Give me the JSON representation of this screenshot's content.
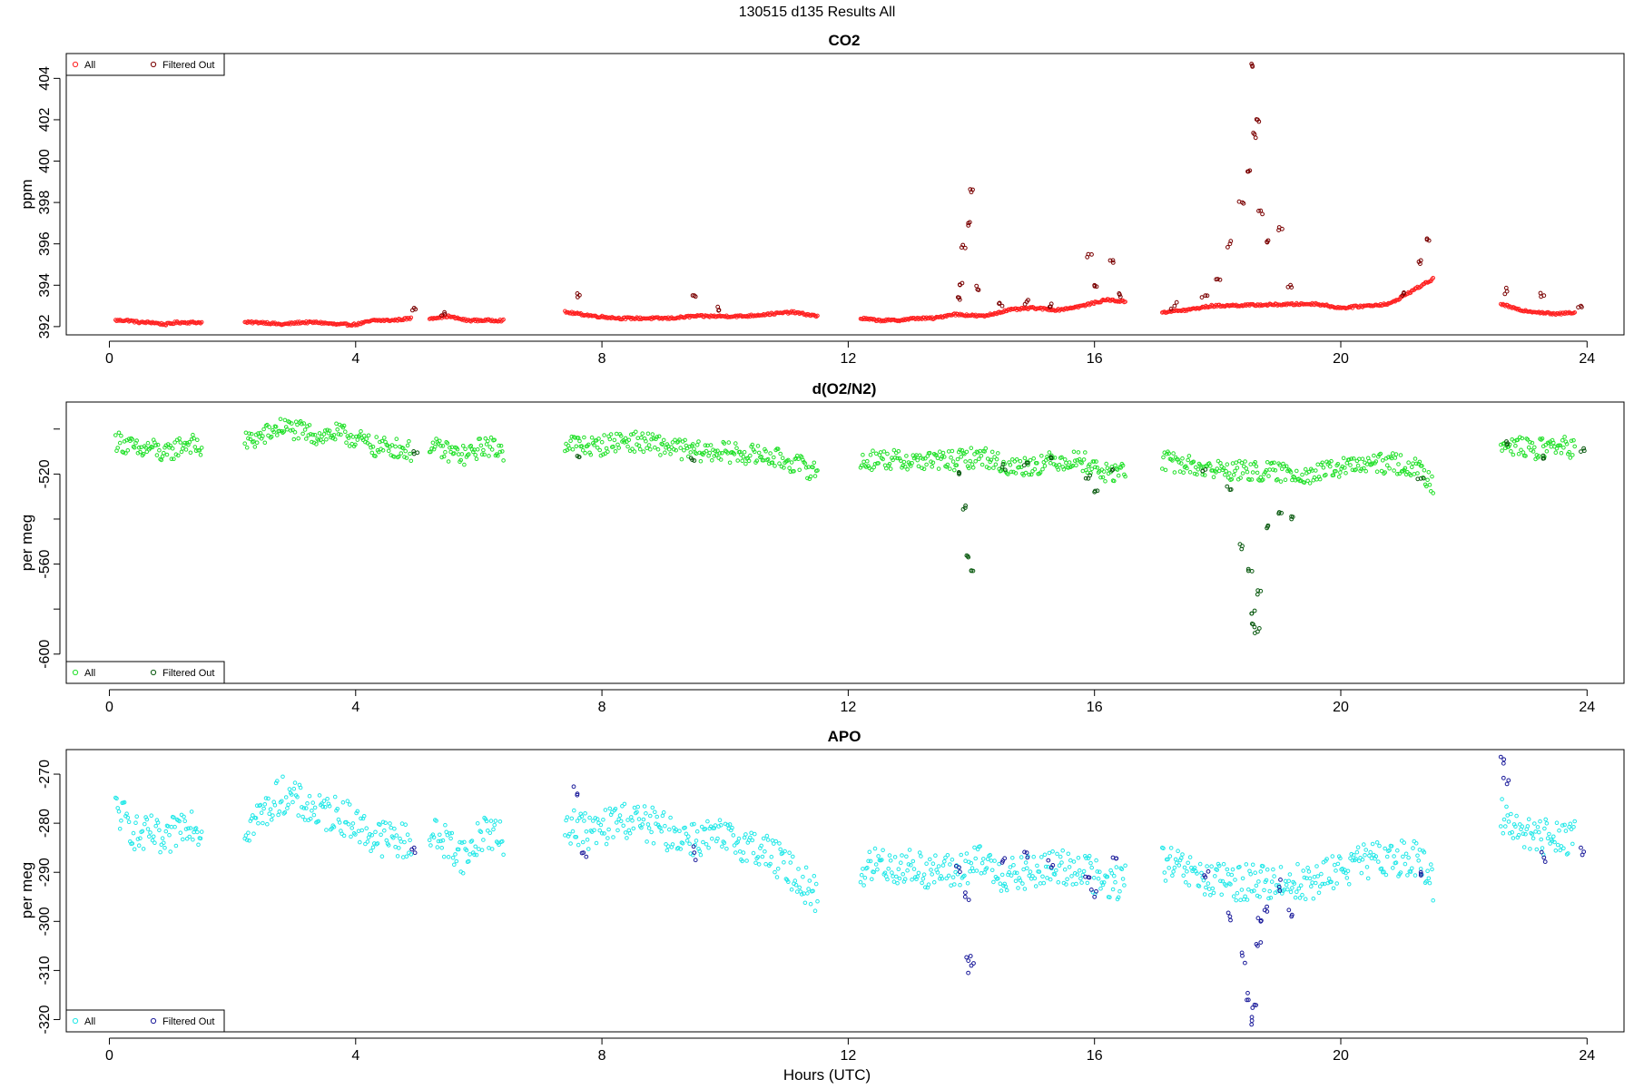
{
  "figure": {
    "title": "130515   d135   Results All",
    "xlabel": "Hours (UTC)"
  },
  "colors": {
    "co2_all": "#ff2020",
    "co2_filtered": "#7a0000",
    "o2_all": "#22e02a",
    "o2_filtered": "#0a5a10",
    "apo_all": "#20e8e8",
    "apo_filtered": "#1a1a9a"
  },
  "chart_data": [
    {
      "type": "scatter",
      "title": "CO2",
      "xlabel": "",
      "ylabel": "ppm",
      "xlim": [
        -0.7,
        24.6
      ],
      "ylim": [
        391.6,
        405.2
      ],
      "xticks": [
        "0",
        "4",
        "8",
        "12",
        "16",
        "20",
        "24"
      ],
      "yticks": [
        "392",
        "394",
        "396",
        "398",
        "400",
        "402",
        "404"
      ],
      "grid": false,
      "legend_position": "top-left",
      "series": [
        {
          "name": "All",
          "color": "#ff2020",
          "y": [],
          "segments": [
            {
              "x": [
                0.1,
                0.3,
                0.5,
                0.7,
                0.9,
                1.1,
                1.3,
                1.5
              ],
              "y": [
                392.3,
                392.3,
                392.2,
                392.2,
                392.1,
                392.2,
                392.2,
                392.2
              ]
            },
            {
              "x": [
                2.2,
                2.5,
                2.8,
                3.1,
                3.4,
                3.7,
                4.0,
                4.3,
                4.6,
                4.9
              ],
              "y": [
                392.2,
                392.2,
                392.1,
                392.2,
                392.2,
                392.1,
                392.1,
                392.3,
                392.3,
                392.4
              ]
            },
            {
              "x": [
                5.2,
                5.5,
                5.8,
                6.1,
                6.4
              ],
              "y": [
                392.4,
                392.5,
                392.3,
                392.3,
                392.3
              ]
            },
            {
              "x": [
                7.4,
                7.9,
                8.3,
                8.7,
                9.1,
                9.5,
                9.9,
                10.3,
                10.7,
                11.1,
                11.5
              ],
              "y": [
                392.7,
                392.5,
                392.4,
                392.4,
                392.4,
                392.5,
                392.5,
                392.5,
                392.6,
                392.7,
                392.5
              ]
            },
            {
              "x": [
                12.2,
                12.5,
                12.8,
                13.1,
                13.4,
                13.7,
                14.2,
                14.6,
                15.0,
                15.4,
                15.8,
                16.2,
                16.5
              ],
              "y": [
                392.4,
                392.3,
                392.3,
                392.4,
                392.4,
                392.6,
                392.5,
                392.8,
                392.9,
                392.8,
                393.0,
                393.3,
                393.2
              ]
            },
            {
              "x": [
                17.1,
                17.5,
                17.9,
                19.6,
                20.0,
                20.4,
                20.8,
                21.2,
                21.5
              ],
              "y": [
                392.7,
                392.8,
                393.0,
                393.1,
                392.9,
                393.0,
                393.1,
                393.8,
                394.3
              ]
            },
            {
              "x": [
                22.6,
                22.9,
                23.2,
                23.5,
                23.8
              ],
              "y": [
                393.1,
                392.8,
                392.7,
                392.6,
                392.7
              ]
            }
          ]
        },
        {
          "name": "Filtered Out",
          "color": "#7a0000",
          "y": [],
          "points": {
            "x": [
              4.95,
              5.45,
              7.6,
              9.5,
              9.9,
              13.8,
              13.85,
              13.9,
              13.95,
              14.0,
              14.1,
              14.5,
              14.9,
              15.3,
              15.9,
              16.0,
              16.3,
              16.4,
              17.3,
              17.8,
              18.0,
              18.2,
              18.4,
              18.5,
              18.55,
              18.6,
              18.65,
              18.7,
              18.8,
              19.0,
              19.2,
              21.0,
              21.3,
              21.4,
              22.7,
              23.3,
              23.9
            ],
            "y": [
              392.9,
              392.6,
              393.6,
              393.5,
              392.8,
              393.4,
              394.1,
              395.8,
              397.0,
              398.5,
              393.8,
              393.0,
              393.2,
              393.1,
              395.5,
              394.0,
              395.2,
              393.6,
              393.0,
              393.5,
              394.3,
              396.0,
              398.0,
              399.5,
              404.7,
              401.3,
              402.0,
              397.6,
              396.1,
              396.8,
              393.9,
              393.5,
              395.2,
              396.2,
              393.7,
              393.5,
              393.0
            ]
          }
        }
      ]
    },
    {
      "type": "scatter",
      "title": "d(O2/N2)",
      "xlabel": "",
      "ylabel": "per meg",
      "xlim": [
        -0.7,
        24.6
      ],
      "ylim": [
        -613,
        -488
      ],
      "xticks": [
        "0",
        "4",
        "8",
        "12",
        "16",
        "20",
        "24"
      ],
      "yticks": [
        "-520",
        "-560",
        "-600"
      ],
      "grid": false,
      "legend_position": "bottom-left",
      "series": [
        {
          "name": "All",
          "color": "#22e02a",
          "y": [],
          "segments": [
            {
              "x": [
                0.1,
                0.3,
                0.5,
                0.7,
                0.9,
                1.1,
                1.3,
                1.5
              ],
              "y": [
                -505,
                -507,
                -510,
                -508,
                -512,
                -508,
                -506,
                -509
              ]
            },
            {
              "x": [
                2.2,
                2.5,
                2.8,
                3.1,
                3.4,
                3.7,
                4.0,
                4.3,
                4.6,
                4.9
              ],
              "y": [
                -506,
                -503,
                -499,
                -501,
                -503,
                -502,
                -504,
                -508,
                -508,
                -510
              ]
            },
            {
              "x": [
                5.2,
                5.5,
                5.8,
                6.1,
                6.4
              ],
              "y": [
                -508,
                -510,
                -512,
                -507,
                -510
              ]
            },
            {
              "x": [
                7.4,
                7.9,
                8.3,
                8.7,
                9.1,
                9.5,
                9.9,
                10.3,
                10.7,
                11.1,
                11.5
              ],
              "y": [
                -506,
                -508,
                -505,
                -506,
                -508,
                -510,
                -510,
                -511,
                -512,
                -515,
                -519
              ]
            },
            {
              "x": [
                12.2,
                12.5,
                12.8,
                13.1,
                13.4,
                13.7,
                14.2,
                14.6,
                15.0,
                15.4,
                15.8,
                16.2,
                16.5
              ],
              "y": [
                -515,
                -513,
                -514,
                -514,
                -514,
                -514,
                -512,
                -517,
                -516,
                -514,
                -514,
                -520,
                -518
              ]
            },
            {
              "x": [
                17.1,
                17.5,
                17.9,
                19.6,
                20.0,
                20.4,
                20.8,
                21.2,
                21.5
              ],
              "y": [
                -514,
                -516,
                -518,
                -520,
                -517,
                -516,
                -515,
                -517,
                -524
              ]
            },
            {
              "x": [
                22.6,
                22.9,
                23.2,
                23.5,
                23.8
              ],
              "y": [
                -505,
                -508,
                -509,
                -507,
                -509
              ]
            }
          ]
        },
        {
          "name": "Filtered Out",
          "color": "#0a5a10",
          "y": [],
          "points": {
            "x": [
              4.95,
              7.6,
              9.5,
              13.8,
              13.9,
              13.95,
              14.0,
              14.5,
              14.9,
              15.3,
              15.9,
              16.0,
              16.3,
              17.8,
              18.2,
              18.4,
              18.5,
              18.55,
              18.6,
              18.65,
              18.7,
              18.8,
              19.0,
              19.2,
              21.3,
              22.7,
              23.3,
              23.9
            ],
            "y": [
              -511,
              -512,
              -514,
              -520,
              -535,
              -557,
              -563,
              -517,
              -515,
              -513,
              -522,
              -528,
              -518,
              -518,
              -527,
              -552,
              -563,
              -582,
              -588,
              -590,
              -572,
              -544,
              -537,
              -540,
              -522,
              -507,
              -513,
              -510
            ]
          }
        }
      ]
    },
    {
      "type": "scatter",
      "title": "APO",
      "xlabel": "Hours (UTC)",
      "ylabel": "per meg",
      "xlim": [
        -0.7,
        24.6
      ],
      "ylim": [
        -322.5,
        -265
      ],
      "xticks": [
        "0",
        "4",
        "8",
        "12",
        "16",
        "20",
        "24"
      ],
      "yticks": [
        "-270",
        "-280",
        "-290",
        "-300",
        "-310",
        "-320"
      ],
      "grid": false,
      "legend_position": "bottom-left",
      "series": [
        {
          "name": "All",
          "color": "#20e8e8",
          "y": [],
          "segments": [
            {
              "x": [
                0.1,
                0.3,
                0.5,
                0.7,
                0.9,
                1.1,
                1.3,
                1.5
              ],
              "y": [
                -277,
                -280,
                -283,
                -282,
                -285,
                -281,
                -279,
                -282
              ]
            },
            {
              "x": [
                2.2,
                2.5,
                2.8,
                3.1,
                3.4,
                3.7,
                4.0,
                4.3,
                4.6,
                4.9
              ],
              "y": [
                -281,
                -278,
                -274,
                -276,
                -278,
                -278,
                -280,
                -283,
                -283,
                -284
              ]
            },
            {
              "x": [
                5.2,
                5.5,
                5.8,
                6.1,
                6.4
              ],
              "y": [
                -282,
                -284,
                -287,
                -281,
                -284
              ]
            },
            {
              "x": [
                7.4,
                7.9,
                8.3,
                8.7,
                9.1,
                9.5,
                9.9,
                10.3,
                10.7,
                11.1,
                11.5
              ],
              "y": [
                -280,
                -282,
                -279,
                -280,
                -282,
                -283,
                -283,
                -284,
                -286,
                -290,
                -295
              ]
            },
            {
              "x": [
                12.2,
                12.5,
                12.8,
                13.1,
                13.4,
                13.7,
                14.2,
                14.6,
                15.0,
                15.4,
                15.8,
                16.2,
                16.5
              ],
              "y": [
                -290,
                -288,
                -289,
                -289,
                -290,
                -290,
                -288,
                -291,
                -290,
                -289,
                -289,
                -293,
                -291
              ]
            },
            {
              "x": [
                17.1,
                17.5,
                17.9,
                19.6,
                20.0,
                20.4,
                20.8,
                21.2,
                21.5
              ],
              "y": [
                -288,
                -290,
                -292,
                -292,
                -289,
                -288,
                -287,
                -287,
                -292
              ]
            },
            {
              "x": [
                22.6,
                22.9,
                23.2,
                23.5,
                23.8
              ],
              "y": [
                -278,
                -281,
                -283,
                -282,
                -283
              ]
            }
          ]
        },
        {
          "name": "Filtered Out",
          "color": "#1a1a9a",
          "y": [],
          "points": {
            "x": [
              4.95,
              7.6,
              7.7,
              9.5,
              13.8,
              13.9,
              13.95,
              14.0,
              14.5,
              14.9,
              15.3,
              15.9,
              16.0,
              16.3,
              17.8,
              18.2,
              18.4,
              18.5,
              18.55,
              18.6,
              18.65,
              18.7,
              18.8,
              19.0,
              19.2,
              21.3,
              22.65,
              22.7,
              23.3,
              23.9
            ],
            "y": [
              -285,
              -274,
              -286,
              -286,
              -289,
              -295,
              -308,
              -309,
              -288,
              -286,
              -289,
              -291,
              -295,
              -287,
              -291,
              -299,
              -307,
              -316,
              -321,
              -317,
              -305,
              -300,
              -297,
              -293,
              -299,
              -290,
              -267,
              -272,
              -287,
              -285
            ]
          }
        }
      ]
    }
  ]
}
